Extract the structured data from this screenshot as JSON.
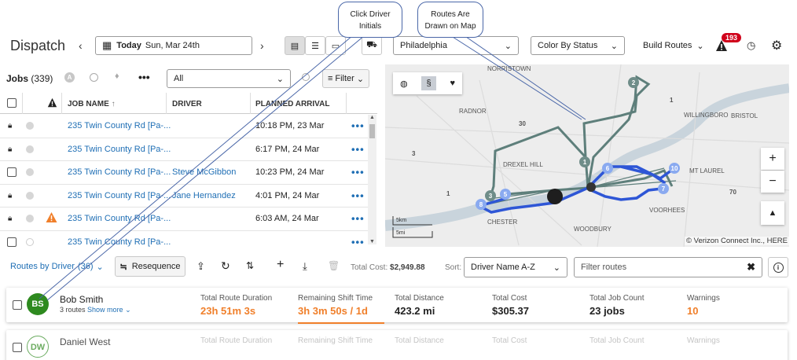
{
  "header": {
    "title": "Dispatch",
    "date_today": "Today",
    "date_value": "Sun, Mar 24th",
    "region": "Philadelphia",
    "color_by": "Color By Status",
    "build_routes": "Build Routes",
    "alert_count": "193"
  },
  "callouts": {
    "initials": "Click Driver\nInitials",
    "routes": "Routes Are\nDrawn on Map"
  },
  "jobs": {
    "title": "Jobs",
    "count": "(339)",
    "filter_select": "All",
    "filter_button": "Filter",
    "columns": {
      "job_name": "JOB NAME",
      "driver": "DRIVER",
      "arrival": "PLANNED ARRIVAL"
    },
    "rows": [
      {
        "job": "235 Twin County Rd [Pa-...",
        "driver": "",
        "arrival": "10:18 PM, 23 Mar",
        "locked": true,
        "warning": false
      },
      {
        "job": "235 Twin County Rd [Pa-...",
        "driver": "",
        "arrival": "6:17 PM, 24 Mar",
        "locked": true,
        "warning": false
      },
      {
        "job": "235 Twin County Rd [Pa-...",
        "driver": "Steve McGibbon",
        "arrival": "10:23 PM, 24 Mar",
        "locked": false,
        "warning": false
      },
      {
        "job": "235 Twin County Rd [Pa-...",
        "driver": "Jane Hernandez",
        "arrival": "4:01 PM, 24 Mar",
        "locked": true,
        "warning": false
      },
      {
        "job": "235 Twin County Rd [Pa-...",
        "driver": "",
        "arrival": "6:03 AM, 24 Mar",
        "locked": true,
        "warning": true
      },
      {
        "job": "235 Twin County Rd [Pa-...",
        "driver": "",
        "arrival": "",
        "locked": false,
        "warning": false
      }
    ]
  },
  "map": {
    "labels": [
      "NORRISTOWN",
      "RADNOR",
      "WILLINGBORO",
      "BRISTOL",
      "DREXEL HILL",
      "MT LAUREL",
      "CHESTER",
      "VOORHEES",
      "WOODBURY"
    ],
    "road_numbers": [
      "30",
      "3",
      "1",
      "70",
      "1"
    ],
    "scale_km": "5km",
    "scale_mi": "5mi",
    "attribution": "© Verizon Connect Inc., HERE",
    "stops": [
      "1",
      "2",
      "3",
      "5",
      "6",
      "7",
      "8",
      "10"
    ]
  },
  "routes": {
    "title": "Routes by Driver",
    "count": "(36)",
    "resequence": "Resequence",
    "total_cost_label": "Total Cost:",
    "total_cost": "$2,949.88",
    "sort_label": "Sort:",
    "sort_value": "Driver Name A-Z",
    "filter_placeholder": "Filter routes"
  },
  "drivers": [
    {
      "initials": "BS",
      "name": "Bob Smith",
      "routes": "3 routes",
      "show_more": "Show more",
      "metrics": [
        {
          "label": "Total Route Duration",
          "value": "23h 51m 3s"
        },
        {
          "label": "Remaining Shift Time",
          "value": "3h 3m 50s / 1d"
        },
        {
          "label": "Total Distance",
          "value": "423.2 mi"
        },
        {
          "label": "Total Cost",
          "value": "$305.37"
        },
        {
          "label": "Total Job Count",
          "value": "23 jobs"
        },
        {
          "label": "Warnings",
          "value": "10"
        }
      ]
    },
    {
      "initials": "DW",
      "name": "Daniel West",
      "routes": "",
      "show_more": "",
      "metrics": [
        {
          "label": "Total Route Duration",
          "value": ""
        },
        {
          "label": "Remaining Shift Time",
          "value": ""
        },
        {
          "label": "Total Distance",
          "value": ""
        },
        {
          "label": "Total Cost",
          "value": ""
        },
        {
          "label": "Total Job Count",
          "value": ""
        },
        {
          "label": "Warnings",
          "value": ""
        }
      ]
    }
  ],
  "colors": {
    "accent": "#1f6fb5",
    "orange": "#f07f2a",
    "avatar_green": "#2e8a1f",
    "route_blue": "#2e56d6",
    "route_gray": "#5e7f7b",
    "badge_red": "#d0021b"
  }
}
